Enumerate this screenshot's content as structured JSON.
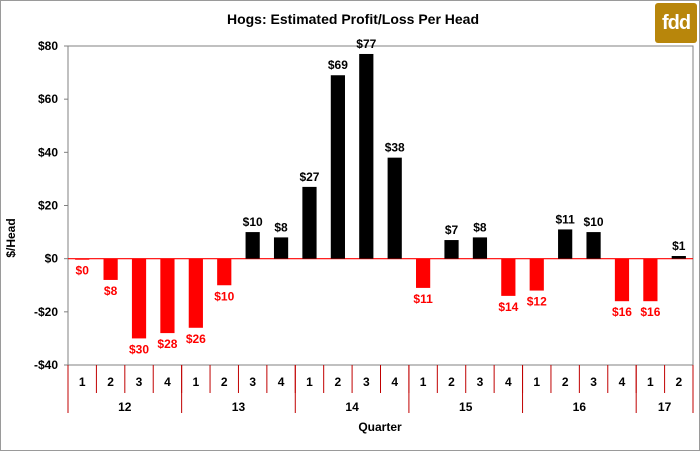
{
  "logo": {
    "text": "fdd",
    "color": "#b8860b"
  },
  "colors": {
    "positive": "#000000",
    "negative": "#ff0000",
    "zero_line": "#ff0000",
    "quarter_grid": "#c00000"
  },
  "chart_data": {
    "type": "bar",
    "title": "Hogs: Estimated Profit/Loss Per Head",
    "xlabel": "Quarter",
    "ylabel": "$/Head",
    "ylim": [
      -40,
      80
    ],
    "yticks": [
      -40,
      -20,
      0,
      20,
      40,
      60,
      80
    ],
    "ytick_labels": [
      "-$40",
      "-$20",
      "$0",
      "$20",
      "$40",
      "$60",
      "$80"
    ],
    "grid": false,
    "legend": "none",
    "year_groups": [
      {
        "label": "12",
        "quarters": [
          "1",
          "2",
          "3",
          "4"
        ]
      },
      {
        "label": "13",
        "quarters": [
          "1",
          "2",
          "3",
          "4"
        ]
      },
      {
        "label": "14",
        "quarters": [
          "1",
          "2",
          "3",
          "4"
        ]
      },
      {
        "label": "15",
        "quarters": [
          "1",
          "2",
          "3",
          "4"
        ]
      },
      {
        "label": "16",
        "quarters": [
          "1",
          "2",
          "3",
          "4"
        ]
      },
      {
        "label": "17",
        "quarters": [
          "1",
          "2"
        ]
      }
    ],
    "values": [
      -0.4,
      -8,
      -30,
      -28,
      -26,
      -10,
      10,
      8,
      27,
      69,
      77,
      38,
      -11,
      7,
      8,
      -14,
      -12,
      11,
      10,
      -16,
      -16,
      1
    ],
    "data_labels": [
      "$0",
      "$8",
      "$30",
      "$28",
      "$26",
      "$10",
      "$10",
      "$8",
      "$27",
      "$69",
      "$77",
      "$38",
      "$11",
      "$7",
      "$8",
      "$14",
      "$12",
      "$11",
      "$10",
      "$16",
      "$16",
      "$1"
    ]
  }
}
